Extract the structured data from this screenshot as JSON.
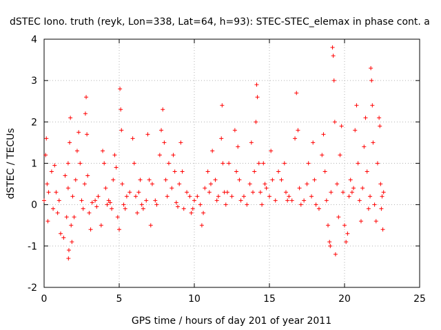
{
  "chart_data": {
    "type": "scatter",
    "title": "dSTEC Iono. truth (reyk, Lon=338, Lat=64, h=93): STEC-STEC_elemax in phase cont. a",
    "xlabel": "GPS time / hours of day 201 of year 2011",
    "ylabel": "dSTEC  / TECUs",
    "xlim": [
      0,
      25
    ],
    "ylim": [
      -2,
      4
    ],
    "x_ticks": [
      "0",
      "5",
      "10",
      "15",
      "20",
      "25"
    ],
    "y_ticks": [
      "-2",
      "-1",
      "0",
      "1",
      "2",
      "3",
      "4"
    ],
    "grid": true,
    "marker": "+",
    "color": "#ff0000",
    "series": [
      {
        "points": [
          [
            0.0,
            0.1
          ],
          [
            0.1,
            1.2
          ],
          [
            0.15,
            1.6
          ],
          [
            0.2,
            0.5
          ],
          [
            0.25,
            -0.4
          ],
          [
            0.3,
            0.3
          ],
          [
            0.5,
            0.8
          ],
          [
            0.6,
            -0.1
          ],
          [
            0.7,
            0.95
          ],
          [
            0.8,
            0.3
          ],
          [
            0.9,
            -0.2
          ],
          [
            1.0,
            0.1
          ],
          [
            1.1,
            -0.7
          ],
          [
            1.3,
            -0.8
          ],
          [
            1.4,
            0.7
          ],
          [
            1.5,
            -0.3
          ],
          [
            1.6,
            1.0
          ],
          [
            1.6,
            0.4
          ],
          [
            1.62,
            -1.3
          ],
          [
            1.65,
            -1.1
          ],
          [
            1.7,
            1.5
          ],
          [
            1.75,
            2.1
          ],
          [
            1.8,
            -0.5
          ],
          [
            1.85,
            -0.9
          ],
          [
            1.9,
            0.2
          ],
          [
            2.0,
            -0.3
          ],
          [
            2.1,
            0.6
          ],
          [
            2.2,
            1.3
          ],
          [
            2.3,
            1.75
          ],
          [
            2.4,
            1.0
          ],
          [
            2.5,
            0.1
          ],
          [
            2.6,
            -0.1
          ],
          [
            2.7,
            0.5
          ],
          [
            2.75,
            2.2
          ],
          [
            2.8,
            2.6
          ],
          [
            2.85,
            1.7
          ],
          [
            2.9,
            0.7
          ],
          [
            3.0,
            -0.2
          ],
          [
            3.1,
            -0.6
          ],
          [
            3.2,
            0.05
          ],
          [
            3.4,
            0.1
          ],
          [
            3.5,
            -0.05
          ],
          [
            3.6,
            0.2
          ],
          [
            3.8,
            -0.5
          ],
          [
            3.9,
            1.3
          ],
          [
            4.0,
            1.0
          ],
          [
            4.1,
            0.4
          ],
          [
            4.2,
            0.0
          ],
          [
            4.3,
            0.1
          ],
          [
            4.4,
            0.05
          ],
          [
            4.5,
            -0.1
          ],
          [
            4.6,
            0.6
          ],
          [
            4.7,
            1.2
          ],
          [
            4.8,
            0.9
          ],
          [
            4.9,
            -0.3
          ],
          [
            5.0,
            -0.6
          ],
          [
            5.05,
            2.8
          ],
          [
            5.1,
            2.3
          ],
          [
            5.15,
            1.8
          ],
          [
            5.2,
            0.5
          ],
          [
            5.3,
            0.0
          ],
          [
            5.4,
            -0.1
          ],
          [
            5.5,
            0.2
          ],
          [
            5.7,
            0.3
          ],
          [
            5.9,
            1.6
          ],
          [
            6.0,
            1.0
          ],
          [
            6.1,
            0.2
          ],
          [
            6.2,
            -0.2
          ],
          [
            6.3,
            0.3
          ],
          [
            6.4,
            0.6
          ],
          [
            6.5,
            0.0
          ],
          [
            6.6,
            -0.1
          ],
          [
            6.8,
            0.1
          ],
          [
            6.9,
            1.7
          ],
          [
            7.0,
            0.6
          ],
          [
            7.1,
            -0.5
          ],
          [
            7.2,
            0.5
          ],
          [
            7.4,
            0.1
          ],
          [
            7.5,
            0.0
          ],
          [
            7.7,
            1.2
          ],
          [
            7.8,
            1.8
          ],
          [
            7.9,
            2.3
          ],
          [
            8.0,
            1.5
          ],
          [
            8.1,
            0.6
          ],
          [
            8.2,
            0.2
          ],
          [
            8.3,
            1.0
          ],
          [
            8.5,
            0.4
          ],
          [
            8.6,
            1.2
          ],
          [
            8.7,
            0.8
          ],
          [
            8.8,
            0.05
          ],
          [
            8.9,
            -0.05
          ],
          [
            9.0,
            0.5
          ],
          [
            9.1,
            1.5
          ],
          [
            9.2,
            0.8
          ],
          [
            9.3,
            -0.1
          ],
          [
            9.5,
            0.3
          ],
          [
            9.7,
            0.2
          ],
          [
            9.8,
            -0.2
          ],
          [
            9.9,
            -0.1
          ],
          [
            10.0,
            0.1
          ],
          [
            10.2,
            0.2
          ],
          [
            10.4,
            0.0
          ],
          [
            10.5,
            -0.5
          ],
          [
            10.6,
            -0.2
          ],
          [
            10.7,
            0.4
          ],
          [
            10.9,
            0.8
          ],
          [
            11.0,
            0.3
          ],
          [
            11.1,
            0.5
          ],
          [
            11.2,
            1.3
          ],
          [
            11.4,
            0.6
          ],
          [
            11.5,
            0.1
          ],
          [
            11.6,
            0.2
          ],
          [
            11.8,
            1.6
          ],
          [
            11.85,
            2.4
          ],
          [
            11.9,
            1.0
          ],
          [
            12.0,
            0.3
          ],
          [
            12.1,
            0.0
          ],
          [
            12.2,
            0.3
          ],
          [
            12.3,
            1.0
          ],
          [
            12.5,
            0.2
          ],
          [
            12.7,
            1.8
          ],
          [
            12.8,
            0.8
          ],
          [
            12.9,
            1.4
          ],
          [
            13.0,
            0.6
          ],
          [
            13.1,
            0.1
          ],
          [
            13.3,
            0.2
          ],
          [
            13.5,
            0.0
          ],
          [
            13.7,
            0.5
          ],
          [
            13.8,
            1.5
          ],
          [
            13.9,
            0.3
          ],
          [
            14.0,
            0.8
          ],
          [
            14.1,
            2.0
          ],
          [
            14.15,
            2.9
          ],
          [
            14.2,
            2.6
          ],
          [
            14.3,
            1.0
          ],
          [
            14.4,
            0.3
          ],
          [
            14.5,
            0.0
          ],
          [
            14.6,
            1.0
          ],
          [
            14.7,
            0.5
          ],
          [
            14.8,
            0.4
          ],
          [
            15.0,
            0.2
          ],
          [
            15.1,
            1.3
          ],
          [
            15.2,
            0.6
          ],
          [
            15.4,
            0.1
          ],
          [
            15.6,
            0.8
          ],
          [
            15.8,
            0.6
          ],
          [
            16.0,
            1.0
          ],
          [
            16.1,
            0.3
          ],
          [
            16.2,
            0.1
          ],
          [
            16.3,
            0.2
          ],
          [
            16.5,
            0.1
          ],
          [
            16.7,
            1.6
          ],
          [
            16.8,
            2.7
          ],
          [
            16.9,
            1.8
          ],
          [
            17.0,
            0.4
          ],
          [
            17.1,
            0.0
          ],
          [
            17.3,
            0.1
          ],
          [
            17.5,
            0.5
          ],
          [
            17.6,
            1.0
          ],
          [
            17.8,
            0.2
          ],
          [
            17.9,
            1.5
          ],
          [
            18.0,
            0.6
          ],
          [
            18.1,
            0.0
          ],
          [
            18.3,
            -0.1
          ],
          [
            18.5,
            1.2
          ],
          [
            18.6,
            1.7
          ],
          [
            18.7,
            0.8
          ],
          [
            18.8,
            0.1
          ],
          [
            18.9,
            -0.5
          ],
          [
            19.0,
            -0.9
          ],
          [
            19.05,
            -1.0
          ],
          [
            19.1,
            0.3
          ],
          [
            19.2,
            3.8
          ],
          [
            19.25,
            3.6
          ],
          [
            19.3,
            3.0
          ],
          [
            19.35,
            2.0
          ],
          [
            19.4,
            -1.2
          ],
          [
            19.5,
            0.5
          ],
          [
            19.6,
            -0.3
          ],
          [
            19.7,
            1.2
          ],
          [
            19.8,
            1.9
          ],
          [
            19.9,
            0.3
          ],
          [
            20.0,
            -0.5
          ],
          [
            20.1,
            -0.9
          ],
          [
            20.2,
            -0.7
          ],
          [
            20.3,
            0.2
          ],
          [
            20.4,
            0.6
          ],
          [
            20.5,
            0.3
          ],
          [
            20.6,
            0.4
          ],
          [
            20.7,
            1.8
          ],
          [
            20.8,
            2.4
          ],
          [
            20.9,
            1.0
          ],
          [
            21.0,
            0.1
          ],
          [
            21.1,
            -0.4
          ],
          [
            21.2,
            0.4
          ],
          [
            21.3,
            1.4
          ],
          [
            21.4,
            2.1
          ],
          [
            21.5,
            0.8
          ],
          [
            21.6,
            -0.1
          ],
          [
            21.7,
            0.2
          ],
          [
            21.75,
            3.3
          ],
          [
            21.8,
            3.0
          ],
          [
            21.85,
            2.4
          ],
          [
            21.9,
            1.5
          ],
          [
            22.0,
            0.0
          ],
          [
            22.1,
            -0.4
          ],
          [
            22.2,
            1.0
          ],
          [
            22.3,
            2.1
          ],
          [
            22.35,
            1.9
          ],
          [
            22.4,
            0.5
          ],
          [
            22.45,
            -0.1
          ],
          [
            22.5,
            0.2
          ],
          [
            22.55,
            -0.6
          ],
          [
            22.6,
            0.3
          ]
        ]
      }
    ]
  }
}
